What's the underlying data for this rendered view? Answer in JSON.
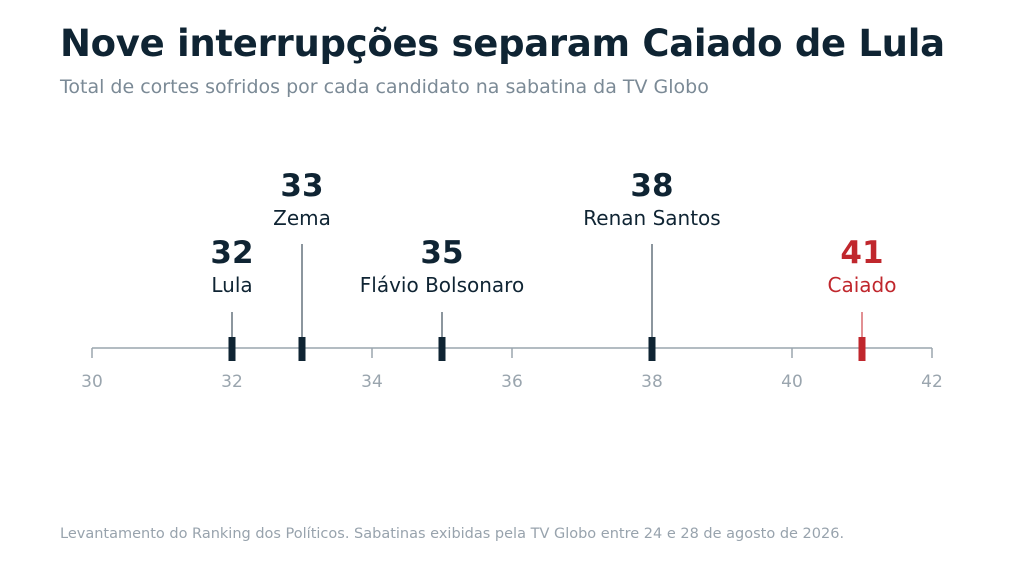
{
  "title": "Nove interrupções separam Caiado de Lula",
  "subtitle": "Total de cortes sofridos por cada candidato na sabatina da TV Globo",
  "footer": "Levantamento do Ranking dos Políticos. Sabatinas exibidas pela TV Globo entre 24 e 28 de agosto de 2026.",
  "colors": {
    "text_dark": "#0f2433",
    "highlight": "#c0272d",
    "axis": "#9aa5ae",
    "tick_label": "#9aa5ae"
  },
  "chart_data": {
    "type": "scatter",
    "xlim": [
      30,
      42
    ],
    "ticks": [
      30,
      32,
      34,
      36,
      38,
      40,
      42
    ],
    "points": [
      {
        "name": "Lula",
        "value": 32,
        "label_level": 1,
        "highlight": false
      },
      {
        "name": "Zema",
        "value": 33,
        "label_level": 2,
        "highlight": false
      },
      {
        "name": "Flávio Bolsonaro",
        "value": 35,
        "label_level": 1,
        "highlight": false
      },
      {
        "name": "Renan Santos",
        "value": 38,
        "label_level": 2,
        "highlight": false
      },
      {
        "name": "Caiado",
        "value": 41,
        "label_level": 1,
        "highlight": true
      }
    ],
    "grid": false,
    "legend": "none"
  }
}
